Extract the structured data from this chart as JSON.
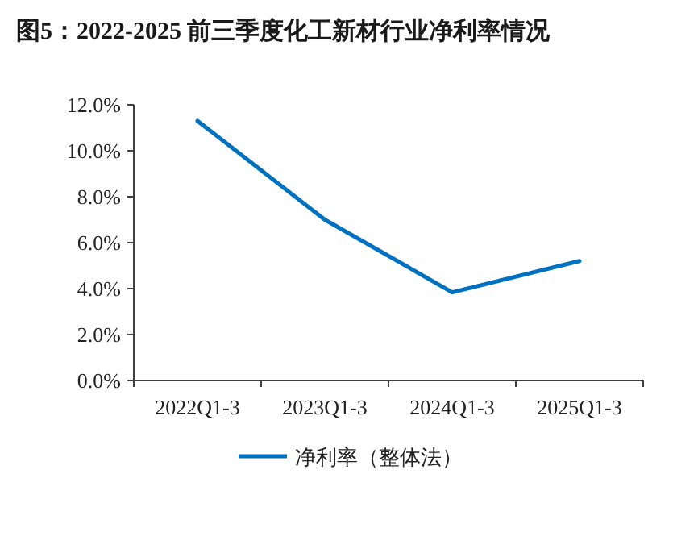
{
  "chart_data": {
    "type": "line",
    "title": "图5：2022-2025 前三季度化工新材行业净利率情况",
    "categories": [
      "2022Q1-3",
      "2023Q1-3",
      "2024Q1-3",
      "2025Q1-3"
    ],
    "series": [
      {
        "name": "净利率（整体法）",
        "color": "#0070c0",
        "values": [
          11.3,
          7.0,
          3.84,
          5.2
        ]
      }
    ],
    "ylim": [
      0,
      12
    ],
    "yticks": [
      {
        "value": 0,
        "label": "0.0%"
      },
      {
        "value": 2,
        "label": "2.0%"
      },
      {
        "value": 4,
        "label": "4.0%"
      },
      {
        "value": 6,
        "label": "6.0%"
      },
      {
        "value": 8,
        "label": "8.0%"
      },
      {
        "value": 10,
        "label": "10.0%"
      },
      {
        "value": 12,
        "label": "12.0%"
      }
    ],
    "legend": "bottom",
    "grid": false,
    "marker": "none",
    "line_style": "solid"
  }
}
